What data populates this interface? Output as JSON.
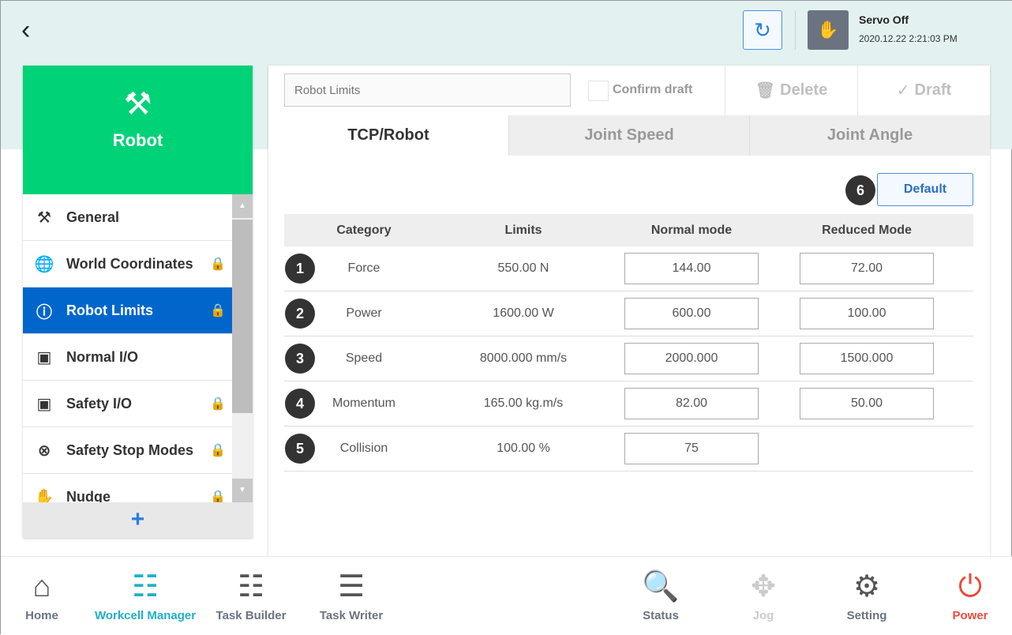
{
  "header": {
    "servo_status": "Servo Off",
    "datetime": "2020.12.22 2:21:03 PM"
  },
  "sidebar": {
    "title": "Robot",
    "items": [
      {
        "label": "General",
        "icon": "robot-arm-icon",
        "locked": false
      },
      {
        "label": "World Coordinates",
        "icon": "globe-icon",
        "locked": true
      },
      {
        "label": "Robot Limits",
        "icon": "limit-icon",
        "locked": true,
        "active": true
      },
      {
        "label": "Normal I/O",
        "icon": "io-icon",
        "locked": false
      },
      {
        "label": "Safety I/O",
        "icon": "io-icon",
        "locked": true
      },
      {
        "label": "Safety Stop Modes",
        "icon": "stop-icon",
        "locked": true
      },
      {
        "label": "Nudge",
        "icon": "hand-icon",
        "locked": true
      }
    ],
    "add_label": "+"
  },
  "toolbar": {
    "name_placeholder": "Robot Limits",
    "confirm_label": "Confirm draft",
    "delete_label": "Delete",
    "draft_label": "Draft"
  },
  "tabs": [
    "TCP/Robot",
    "Joint Speed",
    "Joint Angle"
  ],
  "default_label": "Default",
  "table": {
    "headers": [
      "Category",
      "Limits",
      "Normal mode",
      "Reduced Mode"
    ],
    "rows": [
      {
        "n": "1",
        "category": "Force",
        "limit": "550.00 N",
        "normal": "144.00",
        "reduced": "72.00"
      },
      {
        "n": "2",
        "category": "Power",
        "limit": "1600.00 W",
        "normal": "600.00",
        "reduced": "100.00"
      },
      {
        "n": "3",
        "category": "Speed",
        "limit": "8000.000 mm/s",
        "normal": "2000.000",
        "reduced": "1500.000"
      },
      {
        "n": "4",
        "category": "Momentum",
        "limit": "165.00 kg.m/s",
        "normal": "82.00",
        "reduced": "50.00"
      },
      {
        "n": "5",
        "category": "Collision",
        "limit": "100.00 %",
        "normal": "75",
        "reduced": null
      }
    ]
  },
  "callout_default": "6",
  "nav": [
    "Home",
    "Workcell Manager",
    "Task Builder",
    "Task Writer",
    "Status",
    "Jog",
    "Setting",
    "Power"
  ],
  "colors": {
    "accent_green": "#00d278",
    "active_blue": "#0066cc",
    "nav_active": "#1fb0c8",
    "power": "#e84b3c"
  }
}
